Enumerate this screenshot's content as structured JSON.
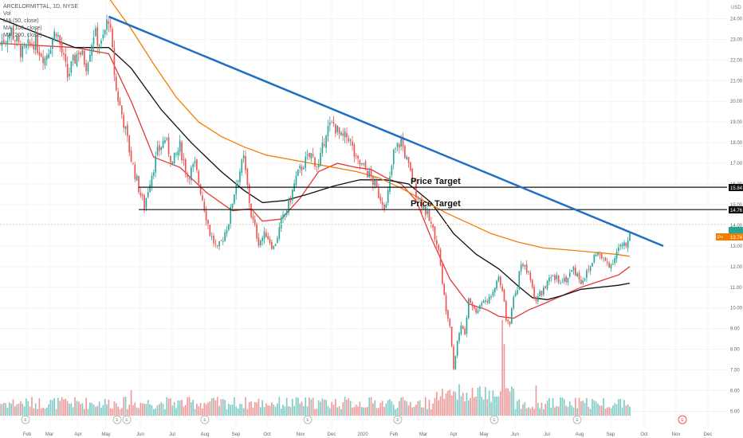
{
  "legend": {
    "symbol": "ARCELORMITTAL, 1D, NYSE",
    "vol": "Vol",
    "ma1": "MA (50, close)",
    "ma2": "MA (100, close)",
    "ma3": "MA (200, close)"
  },
  "currency": "USD",
  "price_labels": {
    "level_high": "15.84",
    "level_low": "14.76",
    "last": "13.74"
  },
  "annotations": {
    "target1": "Price Target",
    "target2": "Price Target"
  },
  "colors": {
    "up": "#26a69a",
    "down": "#ef5350",
    "trendline": "#1e6fc4",
    "ma50": "#e53935",
    "ma100": "#111111",
    "ma200": "#f57c00",
    "vol_up": "#80cbc4",
    "vol_down": "#ef9a9a",
    "last_label": "#f57c00",
    "current_label": "#26a69a"
  },
  "chart_data": {
    "type": "candlestick",
    "title": "ARCELORMITTAL, 1D, NYSE",
    "yaxis": {
      "ticks": [
        "24.00",
        "23.00",
        "22.00",
        "21.00",
        "20.00",
        "19.00",
        "18.00",
        "17.00",
        "16.00",
        "15.00",
        "14.00",
        "13.00",
        "12.00",
        "11.00",
        "10.00",
        "9.00",
        "8.00",
        "7.00",
        "6.00",
        "5.00"
      ],
      "range": [
        4.6,
        24.6
      ]
    },
    "xaxis": {
      "ticks": [
        "Feb",
        "Mar",
        "Apr",
        "May",
        "Jun",
        "Jul",
        "Aug",
        "Sep",
        "Oct",
        "Nov",
        "Dec",
        "2020",
        "Feb",
        "Mar",
        "Apr",
        "May",
        "Jun",
        "Jul",
        "Aug",
        "Sep",
        "Oct",
        "Nov",
        "Dec"
      ]
    },
    "price_path": [
      [
        0,
        22.8
      ],
      [
        6,
        23.4
      ],
      [
        12,
        22.3
      ],
      [
        18,
        22.9
      ],
      [
        24,
        22.1
      ],
      [
        30,
        23.5
      ],
      [
        36,
        21.2
      ],
      [
        42,
        22.5
      ],
      [
        46,
        21.8
      ],
      [
        50,
        23.3
      ],
      [
        54,
        22.7
      ],
      [
        58,
        24.1
      ],
      [
        62,
        20.5
      ],
      [
        66,
        19.0
      ],
      [
        70,
        17.2
      ],
      [
        74,
        15.8
      ],
      [
        77,
        14.9
      ],
      [
        80,
        16.2
      ],
      [
        84,
        17.5
      ],
      [
        88,
        18.2
      ],
      [
        92,
        17.0
      ],
      [
        96,
        17.8
      ],
      [
        100,
        16.4
      ],
      [
        104,
        16.9
      ],
      [
        108,
        15.3
      ],
      [
        112,
        13.6
      ],
      [
        116,
        12.8
      ],
      [
        119,
        13.4
      ],
      [
        122,
        14.2
      ],
      [
        126,
        16.1
      ],
      [
        130,
        17.2
      ],
      [
        134,
        14.5
      ],
      [
        138,
        13.2
      ],
      [
        142,
        13.6
      ],
      [
        146,
        12.9
      ],
      [
        150,
        14.1
      ],
      [
        154,
        15.0
      ],
      [
        158,
        16.3
      ],
      [
        162,
        17.0
      ],
      [
        166,
        17.4
      ],
      [
        170,
        16.8
      ],
      [
        174,
        18.6
      ],
      [
        178,
        18.9
      ],
      [
        182,
        18.2
      ],
      [
        186,
        18.3
      ],
      [
        190,
        17.1
      ],
      [
        194,
        16.8
      ],
      [
        198,
        16.3
      ],
      [
        202,
        15.5
      ],
      [
        206,
        14.9
      ],
      [
        210,
        17.5
      ],
      [
        214,
        18.1
      ],
      [
        218,
        16.8
      ],
      [
        222,
        15.6
      ],
      [
        226,
        14.9
      ],
      [
        230,
        14.0
      ],
      [
        234,
        12.9
      ],
      [
        236,
        11.1
      ],
      [
        238,
        10.0
      ],
      [
        240,
        9.3
      ],
      [
        242,
        7.1
      ],
      [
        244,
        8.4
      ],
      [
        246,
        9.2
      ],
      [
        248,
        8.7
      ],
      [
        250,
        10.4
      ],
      [
        254,
        9.8
      ],
      [
        258,
        10.5
      ],
      [
        262,
        10.4
      ],
      [
        266,
        11.6
      ],
      [
        268,
        11.0
      ],
      [
        270,
        9.4
      ],
      [
        272,
        9.3
      ],
      [
        274,
        10.4
      ],
      [
        276,
        11.0
      ],
      [
        278,
        12.3
      ],
      [
        282,
        11.6
      ],
      [
        286,
        10.4
      ],
      [
        290,
        10.9
      ],
      [
        294,
        11.4
      ],
      [
        298,
        11.4
      ],
      [
        302,
        11.4
      ],
      [
        306,
        11.9
      ],
      [
        310,
        11.3
      ],
      [
        314,
        11.8
      ],
      [
        318,
        12.7
      ],
      [
        322,
        12.3
      ],
      [
        326,
        12.1
      ],
      [
        330,
        12.9
      ],
      [
        334,
        13.0
      ],
      [
        336,
        13.74
      ]
    ],
    "n_days": 337,
    "ma_series": [
      {
        "name": "MA (50, close)",
        "points": [
          [
            0,
            22.8
          ],
          [
            40,
            22.6
          ],
          [
            58,
            22.3
          ],
          [
            70,
            20.0
          ],
          [
            82,
            17.3
          ],
          [
            96,
            16.8
          ],
          [
            110,
            15.6
          ],
          [
            124,
            14.7
          ],
          [
            134,
            14.8
          ],
          [
            140,
            14.2
          ],
          [
            150,
            14.3
          ],
          [
            160,
            15.3
          ],
          [
            170,
            16.6
          ],
          [
            180,
            17.0
          ],
          [
            190,
            16.8
          ],
          [
            198,
            16.7
          ],
          [
            206,
            16.3
          ],
          [
            214,
            16.0
          ],
          [
            222,
            15.2
          ],
          [
            230,
            13.4
          ],
          [
            240,
            11.4
          ],
          [
            250,
            10.2
          ],
          [
            260,
            9.9
          ],
          [
            266,
            9.6
          ],
          [
            274,
            9.5
          ],
          [
            282,
            9.9
          ],
          [
            290,
            10.2
          ],
          [
            300,
            10.6
          ],
          [
            310,
            11.0
          ],
          [
            320,
            11.3
          ],
          [
            330,
            11.6
          ],
          [
            336,
            12.0
          ]
        ]
      },
      {
        "name": "MA (100, close)",
        "points": [
          [
            0,
            24.0
          ],
          [
            20,
            23.3
          ],
          [
            40,
            22.6
          ],
          [
            58,
            22.6
          ],
          [
            70,
            21.6
          ],
          [
            86,
            19.6
          ],
          [
            102,
            18.0
          ],
          [
            118,
            16.6
          ],
          [
            130,
            15.7
          ],
          [
            140,
            15.1
          ],
          [
            152,
            15.2
          ],
          [
            164,
            15.5
          ],
          [
            178,
            15.9
          ],
          [
            192,
            16.2
          ],
          [
            206,
            16.2
          ],
          [
            218,
            16.0
          ],
          [
            230,
            15.1
          ],
          [
            242,
            13.6
          ],
          [
            254,
            12.6
          ],
          [
            266,
            11.9
          ],
          [
            276,
            11.1
          ],
          [
            284,
            10.5
          ],
          [
            292,
            10.4
          ],
          [
            300,
            10.6
          ],
          [
            310,
            10.9
          ],
          [
            320,
            11.0
          ],
          [
            330,
            11.1
          ],
          [
            336,
            11.2
          ]
        ]
      },
      {
        "name": "MA (200, close)",
        "points": [
          [
            58,
            25.0
          ],
          [
            70,
            23.5
          ],
          [
            82,
            21.8
          ],
          [
            94,
            20.2
          ],
          [
            106,
            19.0
          ],
          [
            118,
            18.3
          ],
          [
            130,
            17.8
          ],
          [
            142,
            17.4
          ],
          [
            154,
            17.2
          ],
          [
            166,
            17.0
          ],
          [
            178,
            16.8
          ],
          [
            190,
            16.6
          ],
          [
            202,
            16.3
          ],
          [
            214,
            15.8
          ],
          [
            226,
            15.2
          ],
          [
            238,
            14.6
          ],
          [
            250,
            14.1
          ],
          [
            262,
            13.6
          ],
          [
            276,
            13.2
          ],
          [
            290,
            12.9
          ],
          [
            304,
            12.8
          ],
          [
            316,
            12.7
          ],
          [
            328,
            12.6
          ],
          [
            336,
            12.5
          ]
        ]
      }
    ],
    "horizontal_levels": [
      15.84,
      14.76
    ],
    "trendline": {
      "from": [
        58,
        24.1
      ],
      "to": [
        336,
        13.5
      ]
    },
    "last_price": 13.74
  }
}
